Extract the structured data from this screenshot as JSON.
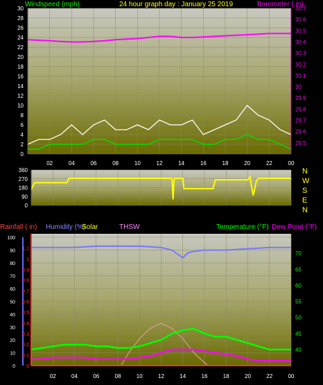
{
  "header": {
    "wind_label": "Windspeed (mph)",
    "title": "24 hour graph day : January 25 2019",
    "baro_label": "Barometer ( in)"
  },
  "direction_letters": [
    "N",
    "W",
    "S",
    "E",
    "N"
  ],
  "bottom_labels": {
    "rainfall": "Rainfall ( in)",
    "humidity": "Humidity (%)",
    "solar": "Solar",
    "thsw": "THSW",
    "temperature": "Temperature (°F)",
    "dew_point": "Dew Point (°F)"
  },
  "colors": {
    "wind_speed": "#ffffff",
    "wind_avg": "#00dd00",
    "barometer": "#ff00ff",
    "direction": "#ffff00",
    "rainfall": "#ff3333",
    "humidity": "#7777ff",
    "solar": "#ffff00",
    "thsw": "#ff88ff",
    "temperature": "#00ff00",
    "dew_point": "#ff00ff",
    "solar_curve": "#dd9999"
  },
  "chart_data": [
    {
      "type": "line",
      "name": "wind-barometer",
      "x_ticks": [
        "02",
        "04",
        "06",
        "08",
        "10",
        "12",
        "14",
        "16",
        "18",
        "20",
        "22",
        "00"
      ],
      "x_range_hours": [
        0,
        24
      ],
      "ylim_left": [
        0,
        30
      ],
      "yticks_left": [
        "0",
        "2",
        "4",
        "6",
        "8",
        "10",
        "12",
        "14",
        "16",
        "18",
        "20",
        "22",
        "24",
        "26",
        "28",
        "30"
      ],
      "ylim_right": [
        29.4,
        30.7
      ],
      "yticks_right": [
        "29.5",
        "29.6",
        "29.7",
        "29.8",
        "29.9",
        "30",
        "30.1",
        "30.2",
        "30.3",
        "30.4",
        "30.5",
        "30.6",
        "30.7"
      ],
      "series": [
        {
          "axis": "right",
          "x": [
            0,
            1,
            2,
            3,
            4,
            5,
            6,
            7,
            8,
            9,
            10,
            11,
            12,
            13,
            14,
            15,
            16,
            17,
            18,
            19,
            20,
            21,
            22,
            23,
            24
          ],
          "y": [
            30.42,
            30.415,
            30.41,
            30.405,
            30.4,
            30.4,
            30.405,
            30.41,
            30.42,
            30.425,
            30.43,
            30.44,
            30.45,
            30.45,
            30.44,
            30.44,
            30.445,
            30.45,
            30.455,
            30.46,
            30.465,
            30.47,
            30.475,
            30.475,
            30.475
          ]
        },
        {
          "axis": "left",
          "x": [
            0,
            1,
            2,
            3,
            4,
            5,
            6,
            7,
            8,
            9,
            10,
            11,
            12,
            13,
            14,
            15,
            16,
            17,
            18,
            19,
            20,
            21,
            22,
            23,
            24
          ],
          "y": [
            2,
            3,
            3,
            4,
            6,
            4,
            6,
            7,
            5,
            5,
            6,
            5,
            7,
            6,
            6,
            7,
            4,
            5,
            6,
            7,
            10,
            8,
            7,
            5,
            4
          ]
        },
        {
          "axis": "left",
          "x": [
            0,
            1,
            2,
            3,
            4,
            5,
            6,
            7,
            8,
            9,
            10,
            11,
            12,
            13,
            14,
            15,
            16,
            17,
            18,
            19,
            20,
            21,
            22,
            23,
            24
          ],
          "y": [
            1,
            1,
            2,
            2,
            2,
            2,
            3,
            3,
            2,
            2,
            2,
            2,
            3,
            3,
            3,
            3,
            2,
            2,
            3,
            3,
            4,
            3,
            3,
            2,
            1
          ]
        }
      ]
    },
    {
      "type": "line",
      "name": "wind-direction",
      "x_range_hours": [
        0,
        24
      ],
      "ylim": [
        0,
        360
      ],
      "yticks": [
        "0",
        "90",
        "180",
        "270",
        "360"
      ],
      "series": [
        {
          "x": [
            0,
            0.3,
            3.3,
            3.5,
            13.0,
            13.1,
            13.2,
            13.3,
            14.0,
            14.1,
            16.8,
            17.0,
            20.0,
            20.2,
            20.5,
            20.8,
            21.0,
            24
          ],
          "y": [
            160,
            230,
            230,
            275,
            275,
            60,
            270,
            275,
            275,
            170,
            170,
            260,
            260,
            290,
            100,
            250,
            275,
            275
          ]
        }
      ]
    },
    {
      "type": "line",
      "name": "temperature-humidity-rain",
      "x_ticks": [
        "02",
        "04",
        "06",
        "08",
        "10",
        "12",
        "14",
        "16",
        "18",
        "20",
        "22",
        "00"
      ],
      "x_range_hours": [
        0,
        24
      ],
      "ylim_humidity": [
        0,
        100
      ],
      "yticks_humidity": [
        "0",
        "10",
        "20",
        "30",
        "40",
        "50",
        "60",
        "70",
        "80",
        "90",
        "100"
      ],
      "ylim_rain": [
        0,
        1.2
      ],
      "yticks_rain": [
        "0",
        "0.1",
        "0.2",
        "0.3",
        "0.4",
        "0.5",
        "0.6",
        "0.7",
        "0.8",
        "0.9",
        "1",
        "1.1"
      ],
      "ylim_temp": [
        35,
        75
      ],
      "yticks_temp": [
        "40",
        "45",
        "50",
        "55",
        "60",
        "65",
        "70"
      ],
      "series": [
        {
          "axis": "humidity",
          "x": [
            0,
            2,
            4,
            6,
            8,
            10,
            12,
            13,
            13.5,
            14,
            14.5,
            15,
            16,
            18,
            20,
            22,
            24
          ],
          "y": [
            92,
            92,
            92,
            93,
            93,
            93,
            92,
            90,
            87,
            84,
            88,
            89,
            90,
            90,
            91,
            92,
            92
          ]
        },
        {
          "axis": "temp",
          "x": [
            0,
            1,
            2,
            3,
            4,
            5,
            6,
            7,
            8,
            9,
            10,
            11,
            12,
            13,
            14,
            15,
            16,
            17,
            18,
            19,
            20,
            21,
            22,
            23,
            24
          ],
          "y": [
            40,
            40.5,
            41,
            41.5,
            41.5,
            41.5,
            41,
            41,
            40.5,
            40.5,
            41,
            42,
            43,
            45,
            46,
            46.5,
            45,
            44,
            44,
            43,
            42,
            41,
            40,
            40,
            40
          ]
        },
        {
          "axis": "temp",
          "x": [
            0,
            1,
            2,
            3,
            4,
            5,
            6,
            7,
            8,
            9,
            10,
            11,
            12,
            13,
            14,
            15,
            16,
            17,
            18,
            19,
            20,
            21,
            22,
            23,
            24
          ],
          "y": [
            37,
            37,
            37.5,
            37.5,
            37.5,
            37.5,
            37,
            37,
            37,
            37,
            37.5,
            38,
            39,
            40,
            40,
            40,
            39.5,
            39,
            38.5,
            38,
            37,
            36.5,
            36.5,
            36.5,
            36.5
          ]
        },
        {
          "axis": "humidity",
          "x": [
            8.3,
            9,
            10,
            11,
            12,
            13,
            14,
            15,
            16.3
          ],
          "y": [
            0,
            10,
            21,
            29,
            33,
            29,
            21,
            10,
            0
          ]
        },
        {
          "axis": "rain",
          "x": [
            0,
            24
          ],
          "y": [
            0,
            0
          ]
        }
      ]
    }
  ]
}
